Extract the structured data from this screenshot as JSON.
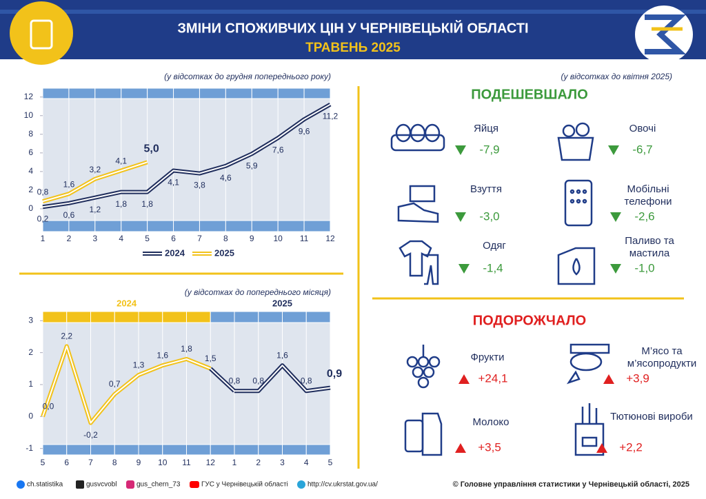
{
  "header": {
    "title": "ЗМІНИ СПОЖИВЧИХ ЦІН У ЧЕРНІВЕЦЬКІЙ ОБЛАСТІ",
    "subtitle": "ТРАВЕНЬ 2025"
  },
  "chart_data": [
    {
      "type": "line",
      "subtitle": "(у відсотках до грудня попереднього року)",
      "x": [
        1,
        2,
        3,
        4,
        5,
        6,
        7,
        8,
        9,
        10,
        11,
        12
      ],
      "xlim": [
        1,
        12
      ],
      "xticks": [
        1,
        2,
        3,
        4,
        5,
        6,
        7,
        8,
        9,
        10,
        11,
        12
      ],
      "ylim": [
        -1.3,
        12.5
      ],
      "yticks": [
        0,
        2,
        4,
        6,
        8,
        10,
        12
      ],
      "legend": "bottom",
      "series": [
        {
          "name": "2024",
          "color": "#1f2d5c",
          "values": [
            0.2,
            0.6,
            1.2,
            1.8,
            1.8,
            4.1,
            3.8,
            4.6,
            5.9,
            7.6,
            9.6,
            11.2
          ],
          "value_labels": [
            "0,2",
            "0,6",
            "1,2",
            "1,8",
            "1,8",
            "4,1",
            "3,8",
            "4,6",
            "5,9",
            "7,6",
            "9,6",
            "11,2"
          ]
        },
        {
          "name": "2025",
          "color": "#f2c21a",
          "values": [
            0.8,
            1.6,
            3.2,
            4.1,
            5.0,
            null,
            null,
            null,
            null,
            null,
            null,
            null
          ],
          "value_labels": [
            "0,8",
            "1,6",
            "3,2",
            "4,1",
            "5,0",
            null,
            null,
            null,
            null,
            null,
            null,
            null
          ]
        }
      ]
    },
    {
      "type": "line",
      "subtitle": "(у відсотках до попереднього місяця)",
      "categories": [
        "5",
        "6",
        "7",
        "8",
        "9",
        "10",
        "11",
        "12",
        "1",
        "2",
        "3",
        "4",
        "5"
      ],
      "ylim": [
        -1.2,
        3.2
      ],
      "yticks": [
        -1,
        0,
        1,
        2,
        3
      ],
      "legend": "top",
      "series": [
        {
          "name": "2024",
          "color": "#f2c21a",
          "values": [
            0.0,
            2.2,
            -0.2,
            0.7,
            1.3,
            1.6,
            1.8,
            1.5,
            null,
            null,
            null,
            null,
            null
          ],
          "value_labels": [
            "0,0",
            "2,2",
            "-0,2",
            "0,7",
            "1,3",
            "1,6",
            "1,8",
            "1,5",
            null,
            null,
            null,
            null,
            null
          ]
        },
        {
          "name": "2025",
          "color": "#1f2d5c",
          "values": [
            null,
            null,
            null,
            null,
            null,
            null,
            null,
            null,
            0.8,
            0.8,
            1.6,
            0.8,
            0.9
          ],
          "value_labels": [
            null,
            null,
            null,
            null,
            null,
            null,
            null,
            null,
            "0,8",
            "0,8",
            "1,6",
            "0,8",
            "0,9"
          ]
        }
      ]
    }
  ],
  "prices": {
    "subtitle": "(у відсотках до квітня 2025)",
    "cheaper": {
      "title": "ПОДЕШЕВШАЛО",
      "items": [
        {
          "name": "Яйця",
          "value": "-7,9"
        },
        {
          "name": "Овочі",
          "value": "-6,7"
        },
        {
          "name": "Взуття",
          "value": "-3,0"
        },
        {
          "name": "Мобільні телефони",
          "value": "-2,6"
        },
        {
          "name": "Одяг",
          "value": "-1,4"
        },
        {
          "name": "Паливо та мастила",
          "value": "-1,0"
        }
      ]
    },
    "dearer": {
      "title": "ПОДОРОЖЧАЛО",
      "items": [
        {
          "name": "Фрукти",
          "value": "+24,1"
        },
        {
          "name": "М’ясо та м’ясопродукти",
          "value": "+3,9"
        },
        {
          "name": "Молоко",
          "value": "+3,5"
        },
        {
          "name": "Тютюнові вироби",
          "value": "+2,2"
        }
      ]
    }
  },
  "footer": {
    "links": [
      "ch.statistika",
      "gusvcvobl",
      "gus_chern_73",
      "ГУС у Чернівецькій області",
      "http://cv.ukrstat.gov.ua/"
    ],
    "copyright": "© Головне управління статистики у Чернівецькій області, 2025"
  }
}
